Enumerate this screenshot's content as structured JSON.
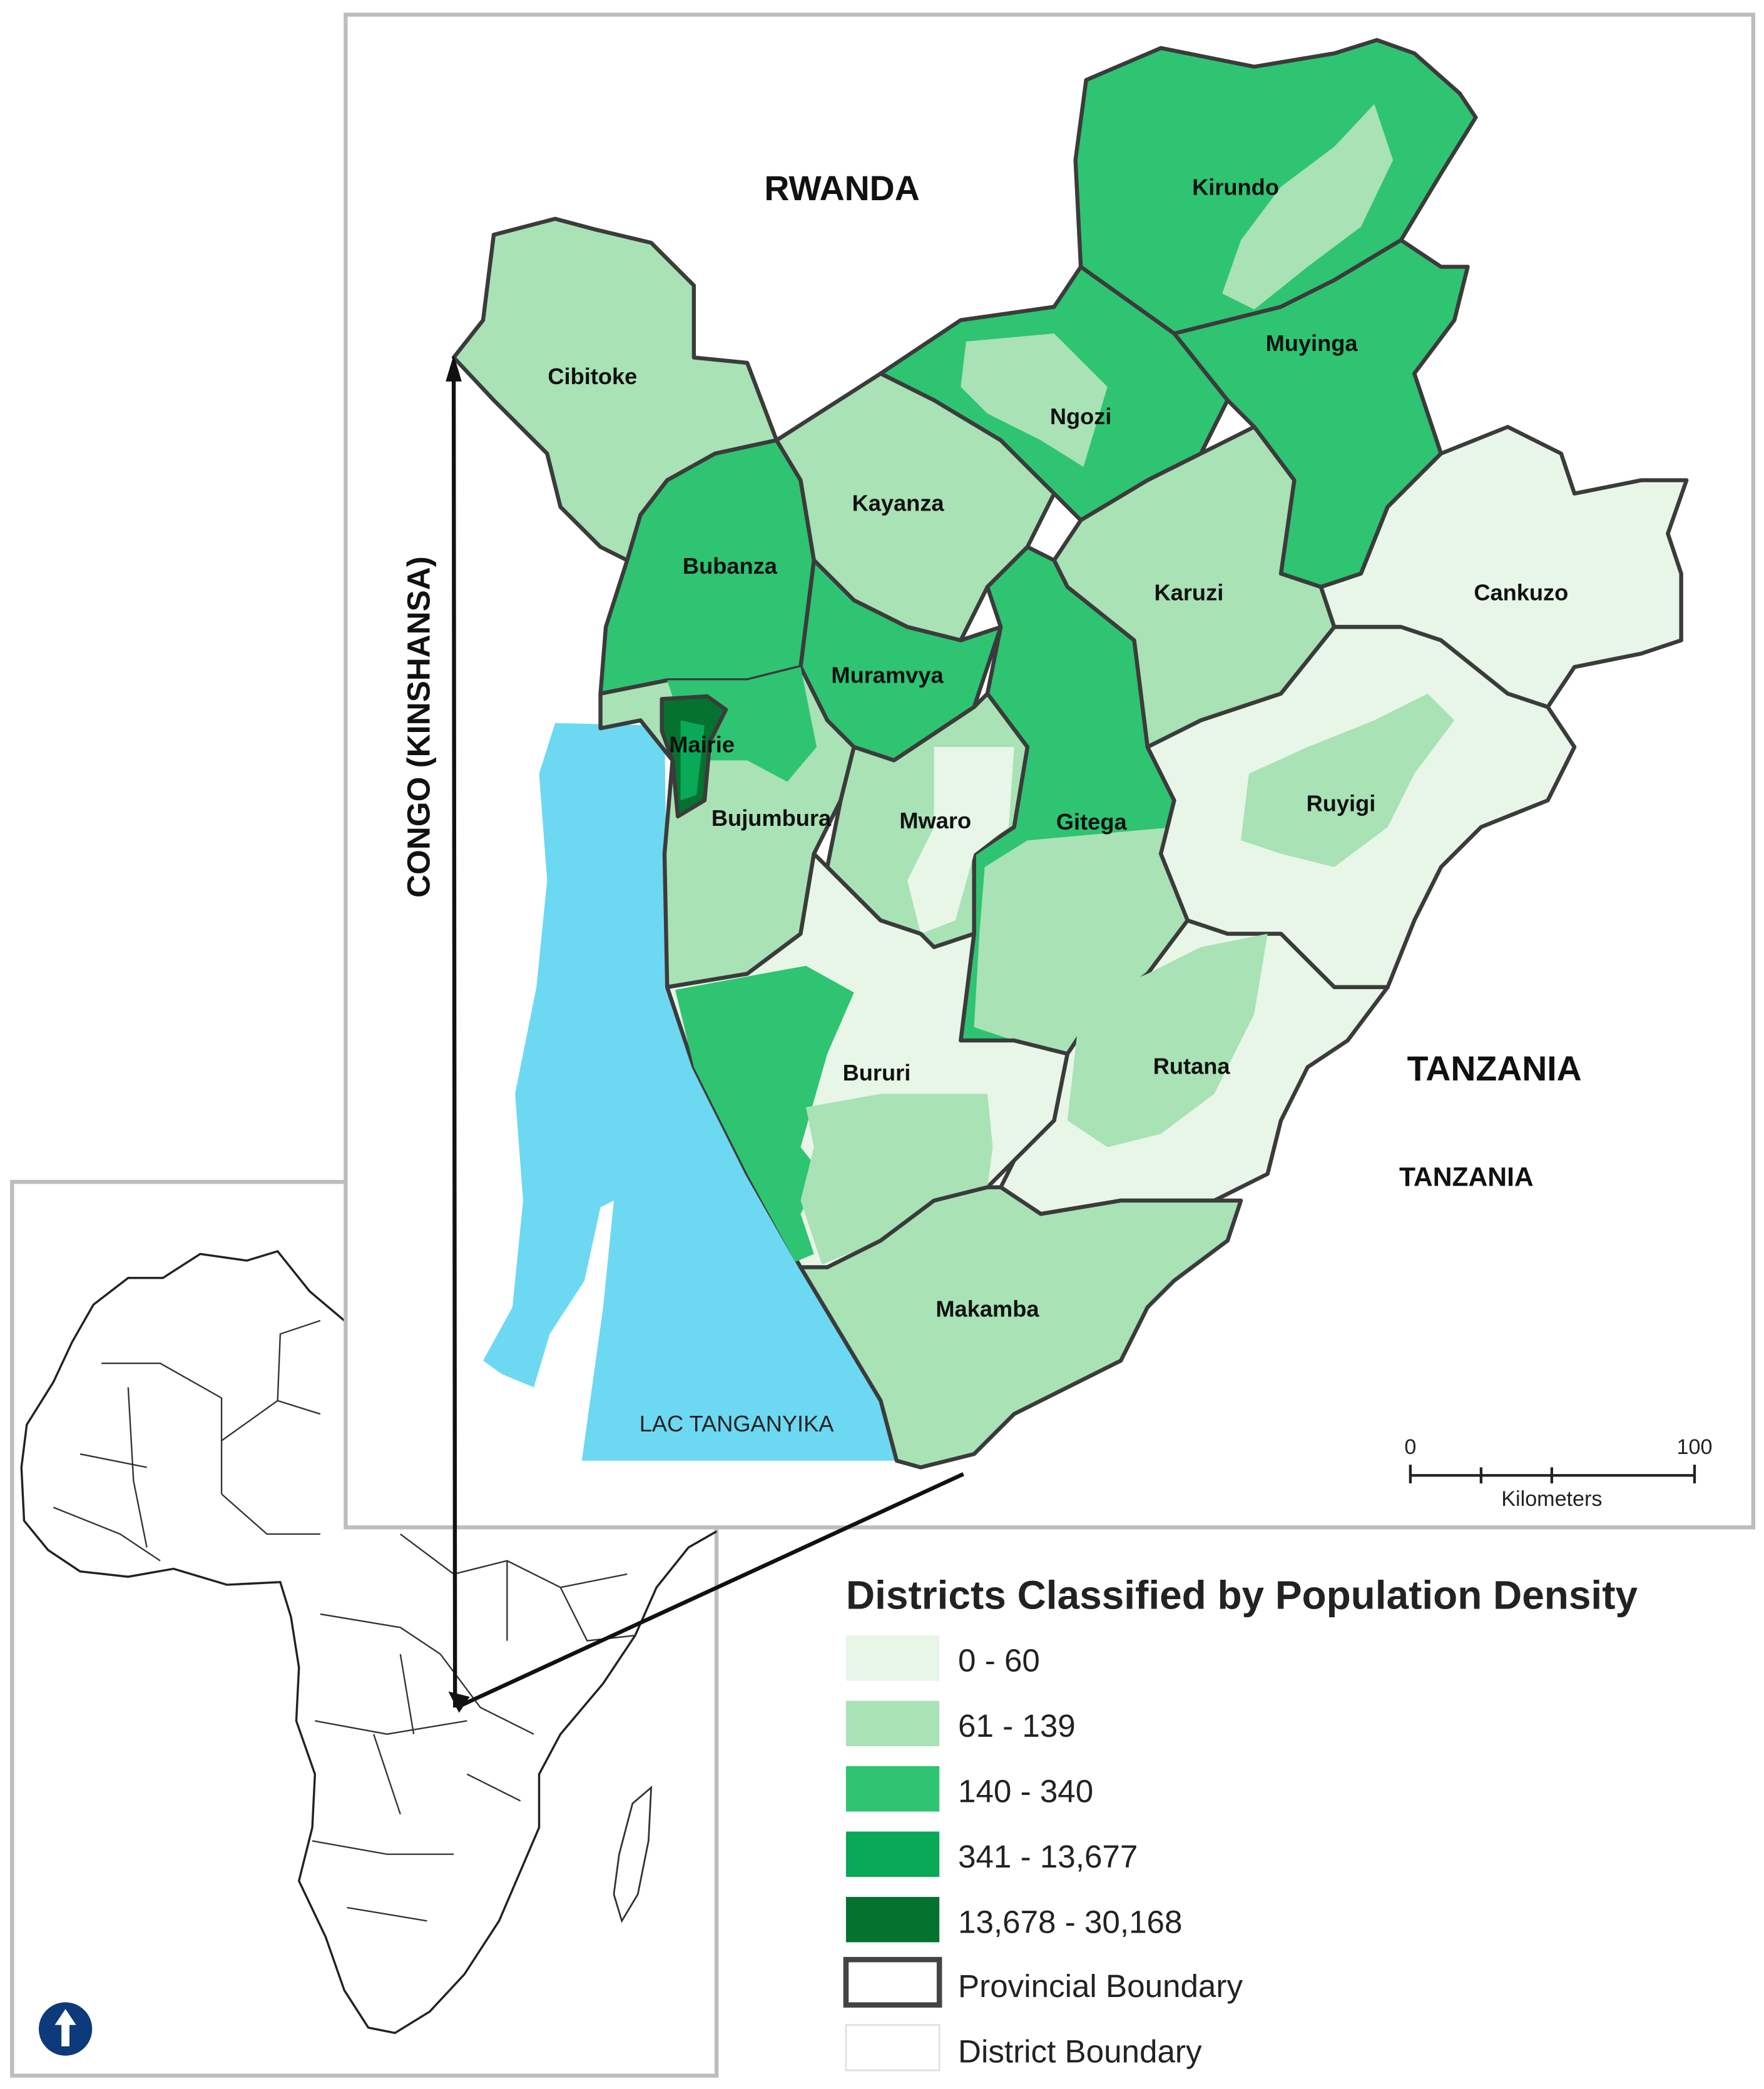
{
  "countries": {
    "rwanda": "RWANDA",
    "congo": "CONGO (KINSHANSA)",
    "tanzania_1": "TANZANIA",
    "tanzania_2": "TANZANIA"
  },
  "lake": {
    "label": "LAC TANGANYIKA",
    "color": "#6dd8f2"
  },
  "provinces": [
    {
      "name": "Kirundo",
      "density_class": "140 - 340"
    },
    {
      "name": "Muyinga",
      "density_class": "140 - 340"
    },
    {
      "name": "Cibitoke",
      "density_class": "61 - 139"
    },
    {
      "name": "Ngozi",
      "density_class": "140 - 340"
    },
    {
      "name": "Kayanza",
      "density_class": "61 - 139"
    },
    {
      "name": "Bubanza",
      "density_class": "140 - 340"
    },
    {
      "name": "Karuzi",
      "density_class": "61 - 139"
    },
    {
      "name": "Cankuzo",
      "density_class": "0 - 60"
    },
    {
      "name": "Muramvya",
      "density_class": "140 - 340"
    },
    {
      "name": "Mairie",
      "density_class": "13,678 - 30,168"
    },
    {
      "name": "Bujumbura",
      "density_class": "61 - 139"
    },
    {
      "name": "Mwaro",
      "density_class": "61 - 139"
    },
    {
      "name": "Gitega",
      "density_class": "140 - 340"
    },
    {
      "name": "Ruyigi",
      "density_class": "0 - 60"
    },
    {
      "name": "Bururi",
      "density_class": "0 - 60"
    },
    {
      "name": "Rutana",
      "density_class": "61 - 139"
    },
    {
      "name": "Makamba",
      "density_class": "61 - 139"
    }
  ],
  "scale_bar": {
    "start": "0",
    "end": "100",
    "unit": "Kilometers"
  },
  "legend": {
    "title": "Districts Classified by Population Density",
    "classes": [
      {
        "label": "0 - 60",
        "color": "#e7f6e7"
      },
      {
        "label": "61 - 139",
        "color": "#a8e2b5"
      },
      {
        "label": "140 - 340",
        "color": "#2ec472"
      },
      {
        "label": "341 - 13,677",
        "color": "#08a957"
      },
      {
        "label": "13,678 - 30,168",
        "color": "#05722f"
      }
    ],
    "provincial_boundary": "Provincial Boundary",
    "district_boundary": "District Boundary"
  },
  "north_arrow": {
    "icon": "north-arrow-icon",
    "color": "#0c3a7a"
  }
}
